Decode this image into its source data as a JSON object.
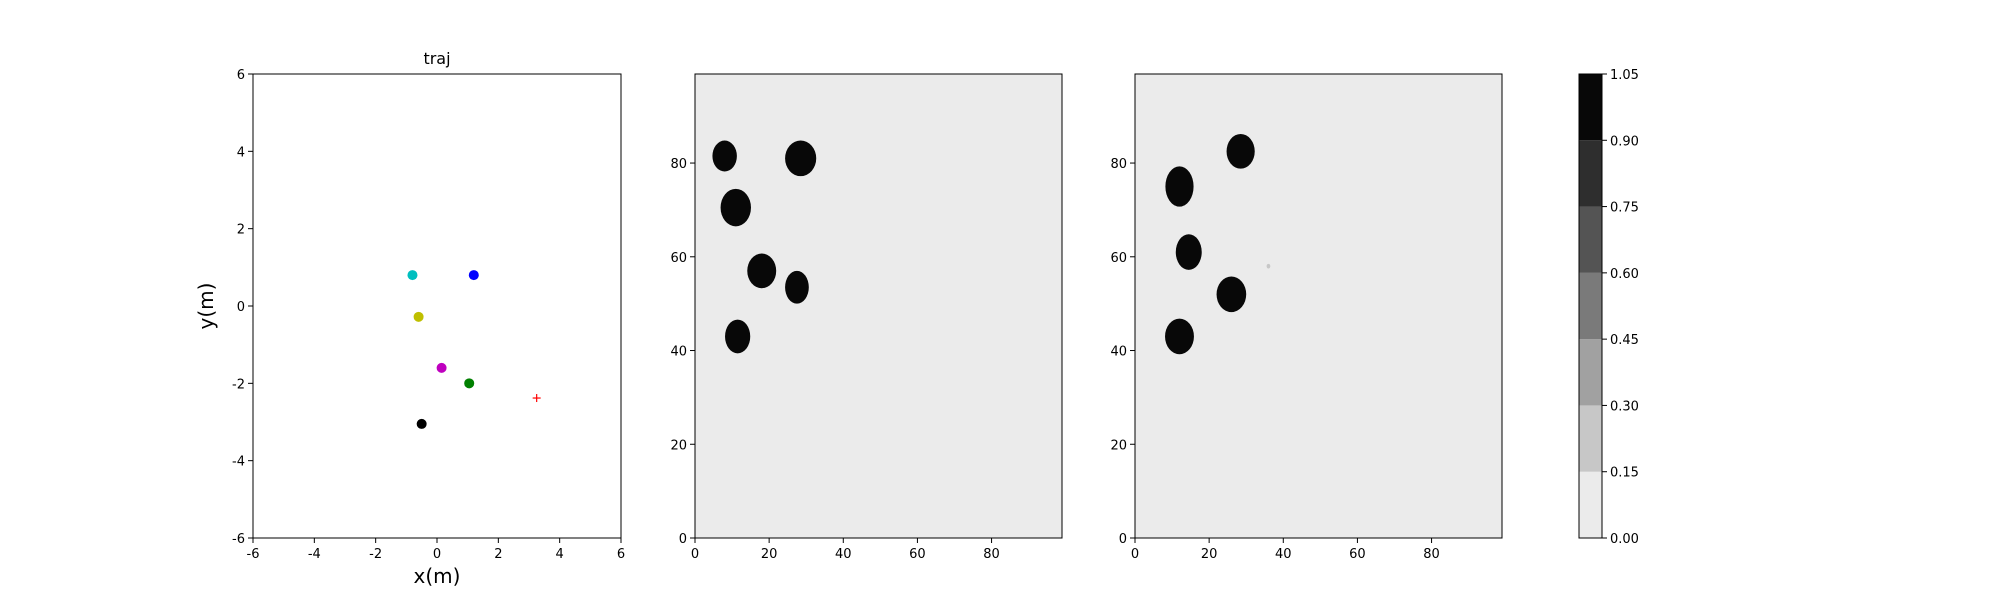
{
  "chart_data": [
    {
      "type": "scatter",
      "title": "traj",
      "xlabel": "x(m)",
      "ylabel": "y(m)",
      "xlim": [
        -6,
        6
      ],
      "ylim": [
        -6,
        6
      ],
      "xticks": [
        -6,
        -4,
        -2,
        0,
        2,
        4,
        6
      ],
      "yticks": [
        -6,
        -4,
        -2,
        0,
        2,
        4,
        6
      ],
      "grid": false,
      "points": [
        {
          "x": -0.8,
          "y": 0.8,
          "color": "#00bfbf",
          "marker": "dot"
        },
        {
          "x": 1.2,
          "y": 0.8,
          "color": "#0000ff",
          "marker": "dot"
        },
        {
          "x": -0.6,
          "y": -0.28,
          "color": "#bfbf00",
          "marker": "dot"
        },
        {
          "x": 0.15,
          "y": -1.6,
          "color": "#bf00bf",
          "marker": "dot"
        },
        {
          "x": 1.05,
          "y": -2.0,
          "color": "#008000",
          "marker": "dot"
        },
        {
          "x": -0.5,
          "y": -3.05,
          "color": "#000000",
          "marker": "dot"
        },
        {
          "x": 3.25,
          "y": -2.38,
          "color": "#ff0000",
          "marker": "plus"
        }
      ]
    },
    {
      "type": "heatmap",
      "title": "",
      "xlim": [
        0,
        99
      ],
      "ylim": [
        0,
        99
      ],
      "xticks": [
        0,
        20,
        40,
        60,
        80
      ],
      "yticks": [
        0,
        20,
        40,
        60,
        80
      ],
      "background_value": 0.05,
      "blobs": [
        {
          "x": 8,
          "y": 81.5,
          "rx": 3.3,
          "ry": 3.3,
          "value": 1.0
        },
        {
          "x": 28.5,
          "y": 81,
          "rx": 4.2,
          "ry": 3.8,
          "value": 1.0
        },
        {
          "x": 11,
          "y": 70.5,
          "rx": 4.1,
          "ry": 4.0,
          "value": 1.0
        },
        {
          "x": 18,
          "y": 57,
          "rx": 3.9,
          "ry": 3.7,
          "value": 1.0
        },
        {
          "x": 27.5,
          "y": 53.5,
          "rx": 3.2,
          "ry": 3.5,
          "value": 1.0
        },
        {
          "x": 11.5,
          "y": 43,
          "rx": 3.4,
          "ry": 3.6,
          "value": 1.0
        }
      ]
    },
    {
      "type": "heatmap",
      "title": "",
      "xlim": [
        0,
        99
      ],
      "ylim": [
        0,
        99
      ],
      "xticks": [
        0,
        20,
        40,
        60,
        80
      ],
      "yticks": [
        0,
        20,
        40,
        60,
        80
      ],
      "background_value": 0.05,
      "blobs": [
        {
          "x": 28.5,
          "y": 82.5,
          "rx": 3.8,
          "ry": 3.7,
          "value": 1.0
        },
        {
          "x": 12,
          "y": 75,
          "rx": 3.8,
          "ry": 4.3,
          "value": 1.0
        },
        {
          "x": 14.5,
          "y": 61,
          "rx": 3.5,
          "ry": 3.8,
          "value": 1.0
        },
        {
          "x": 26,
          "y": 52,
          "rx": 4.0,
          "ry": 3.8,
          "value": 1.0
        },
        {
          "x": 12,
          "y": 43,
          "rx": 3.9,
          "ry": 3.8,
          "value": 1.0
        },
        {
          "x": 36,
          "y": 58,
          "rx": 0.5,
          "ry": 0.5,
          "value": 0.25
        }
      ]
    }
  ],
  "colorbar": {
    "levels": [
      0.0,
      0.15,
      0.3,
      0.45,
      0.6,
      0.75,
      0.9,
      1.05
    ],
    "tick_labels": [
      "0.00",
      "0.15",
      "0.30",
      "0.45",
      "0.60",
      "0.75",
      "0.90",
      "1.05"
    ],
    "colors": [
      "#ebebeb",
      "#c7c7c7",
      "#a1a1a1",
      "#7a7a7a",
      "#545454",
      "#2e2e2e",
      "#080808"
    ],
    "heatmap_max_color": "#080808"
  }
}
